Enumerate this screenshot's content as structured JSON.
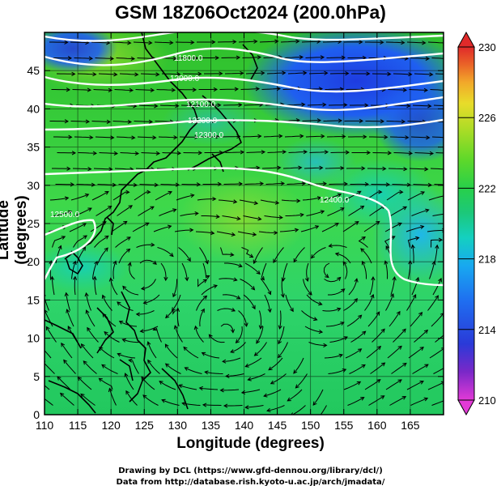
{
  "title": "GSM 18Z06Oct2024 (200.0hPa)",
  "axes": {
    "xlabel": "Longitude (degrees)",
    "ylabel": "Latitude  (degrees)",
    "x_ticks": [
      "110",
      "115",
      "120",
      "125",
      "130",
      "135",
      "140",
      "145",
      "150",
      "155",
      "160",
      "165"
    ],
    "y_ticks": [
      "0",
      "5",
      "10",
      "15",
      "20",
      "25",
      "30",
      "35",
      "40",
      "45"
    ],
    "x_range": [
      110,
      170
    ],
    "y_range": [
      0,
      50
    ]
  },
  "colorbar": {
    "ticks": [
      "210",
      "214",
      "218",
      "222",
      "226",
      "230"
    ],
    "range": [
      210,
      230
    ],
    "colors": [
      "#e23ad6",
      "#7a28c8",
      "#2a3ad8",
      "#1f6ef0",
      "#18a8f0",
      "#14d0c0",
      "#1cc87a",
      "#28d04a",
      "#5ed82a",
      "#a6dc26",
      "#e8dc2a",
      "#f2a82a",
      "#ea6428",
      "#e02a2a"
    ]
  },
  "contours": [
    {
      "label": "11800.0"
    },
    {
      "label": "12000.0"
    },
    {
      "label": "12100.0"
    },
    {
      "label": "12200.0"
    },
    {
      "label": "12300.0"
    },
    {
      "label": "12400.0"
    },
    {
      "label": "12500.0"
    }
  ],
  "credits": {
    "line1": "Drawing by DCL (https://www.gfd-dennou.org/library/dcl/)",
    "line2": "Data from http://database.rish.kyoto-u.ac.jp/arch/jmadata/"
  },
  "icons": [
    "streamline-arrows",
    "coastline-map",
    "colorbar-up-triangle",
    "colorbar-down-triangle"
  ]
}
